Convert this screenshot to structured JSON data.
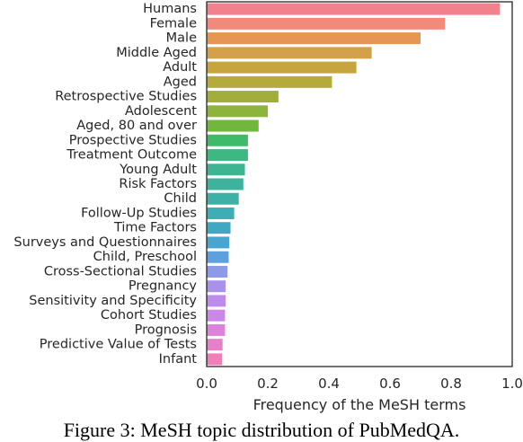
{
  "chart_data": {
    "type": "bar",
    "orientation": "horizontal",
    "categories": [
      "Humans",
      "Female",
      "Male",
      "Middle Aged",
      "Adult",
      "Aged",
      "Retrospective Studies",
      "Adolescent",
      "Aged, 80 and over",
      "Prospective Studies",
      "Treatment Outcome",
      "Young Adult",
      "Risk Factors",
      "Child",
      "Follow-Up Studies",
      "Time Factors",
      "Surveys and Questionnaires",
      "Child, Preschool",
      "Cross-Sectional Studies",
      "Pregnancy",
      "Sensitivity and Specificity",
      "Cohort Studies",
      "Prognosis",
      "Predictive Value of Tests",
      "Infant"
    ],
    "values": [
      0.96,
      0.78,
      0.7,
      0.54,
      0.49,
      0.41,
      0.235,
      0.2,
      0.17,
      0.135,
      0.135,
      0.125,
      0.12,
      0.105,
      0.09,
      0.078,
      0.074,
      0.072,
      0.068,
      0.062,
      0.062,
      0.06,
      0.06,
      0.052,
      0.05
    ],
    "colors": [
      "#f2818e",
      "#f08b7c",
      "#e69652",
      "#d4a14a",
      "#c6a43e",
      "#b5aa3c",
      "#a1ae3c",
      "#8db53c",
      "#71b73c",
      "#3fba6a",
      "#3db882",
      "#3eb592",
      "#3db39d",
      "#3eb1a7",
      "#3eaeb5",
      "#40a9c1",
      "#47a5cf",
      "#5da0de",
      "#8c9ae8",
      "#a993ea",
      "#bc8bec",
      "#cb87e6",
      "#dc82da",
      "#e680c9",
      "#ef7fb6"
    ],
    "xlabel": "Frequency of the MeSH terms",
    "ylabel": "",
    "xlim": [
      0,
      1.0
    ],
    "xticks": [
      "0.0",
      "0.2",
      "0.4",
      "0.6",
      "0.8",
      "1.0"
    ],
    "grid": false
  },
  "caption": "Figure 3: MeSH topic distribution of PubMedQA."
}
